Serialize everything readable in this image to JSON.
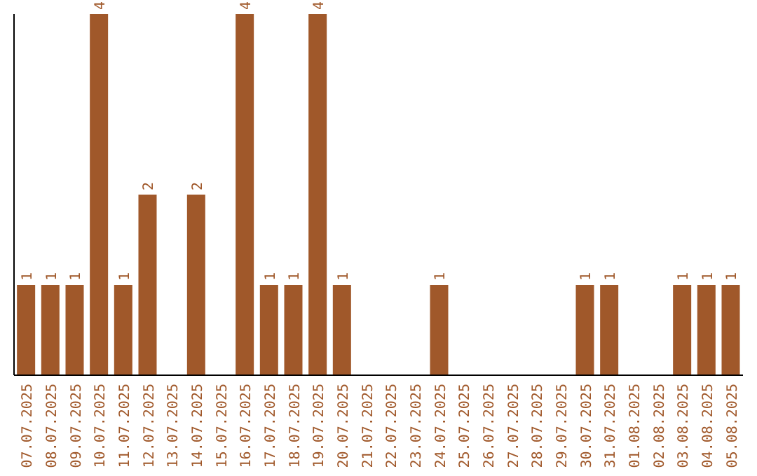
{
  "chart_data": {
    "type": "bar",
    "categories": [
      "07.07.2025",
      "08.07.2025",
      "09.07.2025",
      "10.07.2025",
      "11.07.2025",
      "12.07.2025",
      "13.07.2025",
      "14.07.2025",
      "15.07.2025",
      "16.07.2025",
      "17.07.2025",
      "18.07.2025",
      "19.07.2025",
      "20.07.2025",
      "21.07.2025",
      "22.07.2025",
      "23.07.2025",
      "24.07.2025",
      "25.07.2025",
      "26.07.2025",
      "27.07.2025",
      "28.07.2025",
      "29.07.2025",
      "30.07.2025",
      "31.07.2025",
      "01.08.2025",
      "02.08.2025",
      "03.08.2025",
      "04.08.2025",
      "05.08.2025"
    ],
    "values": [
      1,
      1,
      1,
      4,
      1,
      2,
      0,
      2,
      0,
      4,
      1,
      1,
      4,
      1,
      0,
      0,
      0,
      1,
      0,
      0,
      0,
      0,
      0,
      1,
      1,
      0,
      0,
      1,
      1,
      1
    ],
    "value_labels": [
      "1",
      "1",
      "1",
      "4",
      "1",
      "2",
      null,
      "2",
      null,
      "4",
      "1",
      "1",
      "4",
      "1",
      null,
      null,
      null,
      "1",
      null,
      null,
      null,
      null,
      null,
      "1",
      "1",
      null,
      null,
      "1",
      "1",
      "1"
    ],
    "color": "#a0582a",
    "tick_labels": "x",
    "grid": false,
    "legend": false
  }
}
